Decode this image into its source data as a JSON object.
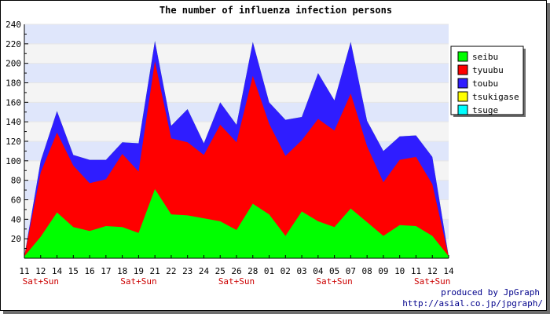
{
  "chart_data": {
    "type": "area",
    "stacked": true,
    "title": "The number of influenza infection persons",
    "xlabel": "",
    "ylabel": "",
    "ylim": [
      0,
      240
    ],
    "y_ticks": [
      20,
      40,
      60,
      80,
      100,
      120,
      140,
      160,
      180,
      200,
      220,
      240
    ],
    "categories": [
      "11",
      "12",
      "14",
      "15",
      "16",
      "17",
      "18",
      "19",
      "21",
      "22",
      "23",
      "24",
      "25",
      "26",
      "28",
      "01",
      "02",
      "03",
      "04",
      "05",
      "07",
      "08",
      "09",
      "10",
      "11",
      "12",
      "14"
    ],
    "category_annotations": [
      {
        "index": 1,
        "text": "Sat+Sun"
      },
      {
        "index": 7,
        "text": "Sat+Sun"
      },
      {
        "index": 13,
        "text": "Sat+Sun"
      },
      {
        "index": 19,
        "text": "Sat+Sun"
      },
      {
        "index": 25,
        "text": "Sat+Sun"
      }
    ],
    "series": [
      {
        "name": "seibu",
        "color": "#00ff00",
        "values": [
          2,
          22,
          47,
          32,
          28,
          33,
          32,
          26,
          71,
          45,
          44,
          41,
          38,
          29,
          56,
          45,
          23,
          48,
          38,
          32,
          51,
          37,
          23,
          34,
          33,
          23,
          2
        ]
      },
      {
        "name": "tyuubu",
        "color": "#ff0000",
        "values": [
          0,
          66,
          82,
          63,
          49,
          48,
          75,
          63,
          131,
          78,
          75,
          65,
          99,
          90,
          131,
          93,
          82,
          73,
          105,
          99,
          118,
          78,
          55,
          67,
          71,
          53,
          0
        ]
      },
      {
        "name": "toubu",
        "color": "#2f1dff",
        "values": [
          0,
          12,
          22,
          11,
          24,
          20,
          12,
          29,
          21,
          13,
          34,
          12,
          23,
          18,
          35,
          22,
          37,
          24,
          47,
          31,
          53,
          26,
          32,
          24,
          22,
          28,
          0
        ]
      },
      {
        "name": "tsukigase",
        "color": "#ffff00",
        "values": [
          0,
          0,
          0,
          0,
          0,
          0,
          0,
          0,
          0,
          0,
          0,
          0,
          0,
          0,
          0,
          0,
          0,
          0,
          0,
          0,
          0,
          0,
          0,
          0,
          0,
          0,
          0
        ]
      },
      {
        "name": "tsuge",
        "color": "#00ffff",
        "values": [
          0,
          0,
          0,
          0,
          0,
          0,
          0,
          0,
          0,
          0,
          0,
          0,
          0,
          0,
          0,
          0,
          0,
          0,
          0,
          0,
          0,
          0,
          0,
          0,
          0,
          0,
          0
        ]
      }
    ],
    "grid": true,
    "grid_band_colors": [
      "#dfe6fb",
      "#f4f4f4"
    ],
    "legend_position": "right"
  },
  "footer": {
    "credit": "produced by JpGraph",
    "url": "http://asial.co.jp/jpgraph/"
  }
}
